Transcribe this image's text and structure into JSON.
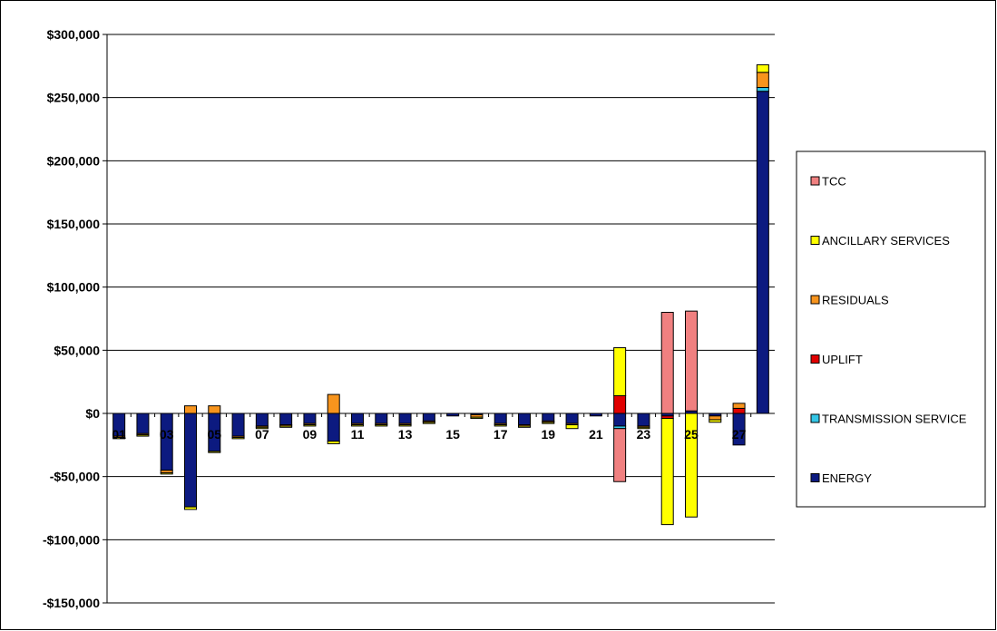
{
  "chart_data": {
    "type": "bar",
    "stacked": true,
    "title": "",
    "xlabel": "",
    "ylabel": "",
    "ylim": [
      -150000,
      300000
    ],
    "y_ticks": [
      300000,
      250000,
      200000,
      150000,
      100000,
      50000,
      0,
      -50000,
      -100000,
      -150000
    ],
    "y_tick_labels": [
      "$300,000",
      "$250,000",
      "$200,000",
      "$150,000",
      "$100,000",
      "$50,000",
      "$0",
      "-$50,000",
      "-$100,000",
      "-$150,000"
    ],
    "grid": true,
    "legend_position": "right",
    "categories": [
      "01",
      "02",
      "03",
      "04",
      "05",
      "06",
      "07",
      "08",
      "09",
      "10",
      "11",
      "12",
      "13",
      "14",
      "15",
      "16",
      "17",
      "18",
      "19",
      "20",
      "21",
      "22",
      "23",
      "24",
      "25",
      "26",
      "27",
      "28"
    ],
    "x_tick_labels_shown": [
      "01",
      "03",
      "05",
      "07",
      "09",
      "11",
      "13",
      "15",
      "17",
      "19",
      "21",
      "23",
      "25",
      "27"
    ],
    "series": [
      {
        "name": "ENERGY",
        "color": "#0c1a80",
        "values": [
          -18000,
          -16000,
          -45000,
          -74000,
          -30000,
          -18000,
          -10000,
          -9000,
          -8000,
          -22000,
          -8000,
          -8000,
          -8000,
          -6000,
          -2000,
          -1000,
          -8000,
          -9000,
          -6000,
          -8000,
          -2000,
          -10000,
          -10000,
          -2000,
          2000,
          -2000,
          -25000,
          255000
        ]
      },
      {
        "name": "TRANSMISSION SERVICE",
        "color": "#33c6e6",
        "values": [
          0,
          0,
          0,
          0,
          0,
          0,
          0,
          0,
          0,
          0,
          0,
          0,
          0,
          0,
          0,
          0,
          0,
          0,
          0,
          0,
          0,
          -2000,
          0,
          0,
          0,
          0,
          0,
          3000
        ]
      },
      {
        "name": "UPLIFT",
        "color": "#e00000",
        "values": [
          0,
          0,
          0,
          0,
          0,
          0,
          0,
          0,
          0,
          0,
          0,
          0,
          0,
          0,
          0,
          0,
          0,
          0,
          0,
          0,
          0,
          14000,
          0,
          -2000,
          0,
          0,
          4000,
          0
        ]
      },
      {
        "name": "RESIDUALS",
        "color": "#f7941d",
        "values": [
          -1000,
          -1000,
          -2000,
          6000,
          6000,
          -1000,
          -1000,
          -1000,
          -1000,
          15000,
          -1000,
          -1000,
          -1000,
          -1000,
          0,
          -2000,
          -1000,
          -1000,
          -1000,
          -1000,
          0,
          0,
          -1000,
          0,
          0,
          -3000,
          4000,
          12000
        ]
      },
      {
        "name": "ANCILLARY SERVICES",
        "color": "#ffff00",
        "values": [
          -1000,
          -1000,
          -1000,
          -2000,
          -1000,
          -1000,
          -1000,
          -1000,
          -1000,
          -2000,
          -1000,
          -1000,
          -1000,
          -1000,
          0,
          -1000,
          -1000,
          -1000,
          -1000,
          -3000,
          0,
          38000,
          -1000,
          -84000,
          -82000,
          -2000,
          0,
          6000
        ]
      },
      {
        "name": "TCC",
        "color": "#f08080",
        "values": [
          0,
          0,
          0,
          0,
          0,
          0,
          0,
          0,
          0,
          0,
          0,
          0,
          0,
          0,
          0,
          0,
          0,
          0,
          0,
          0,
          0,
          -42000,
          0,
          80000,
          79000,
          0,
          0,
          0
        ]
      }
    ],
    "legend_order": [
      "TCC",
      "ANCILLARY SERVICES",
      "RESIDUALS",
      "UPLIFT",
      "TRANSMISSION SERVICE",
      "ENERGY"
    ]
  }
}
